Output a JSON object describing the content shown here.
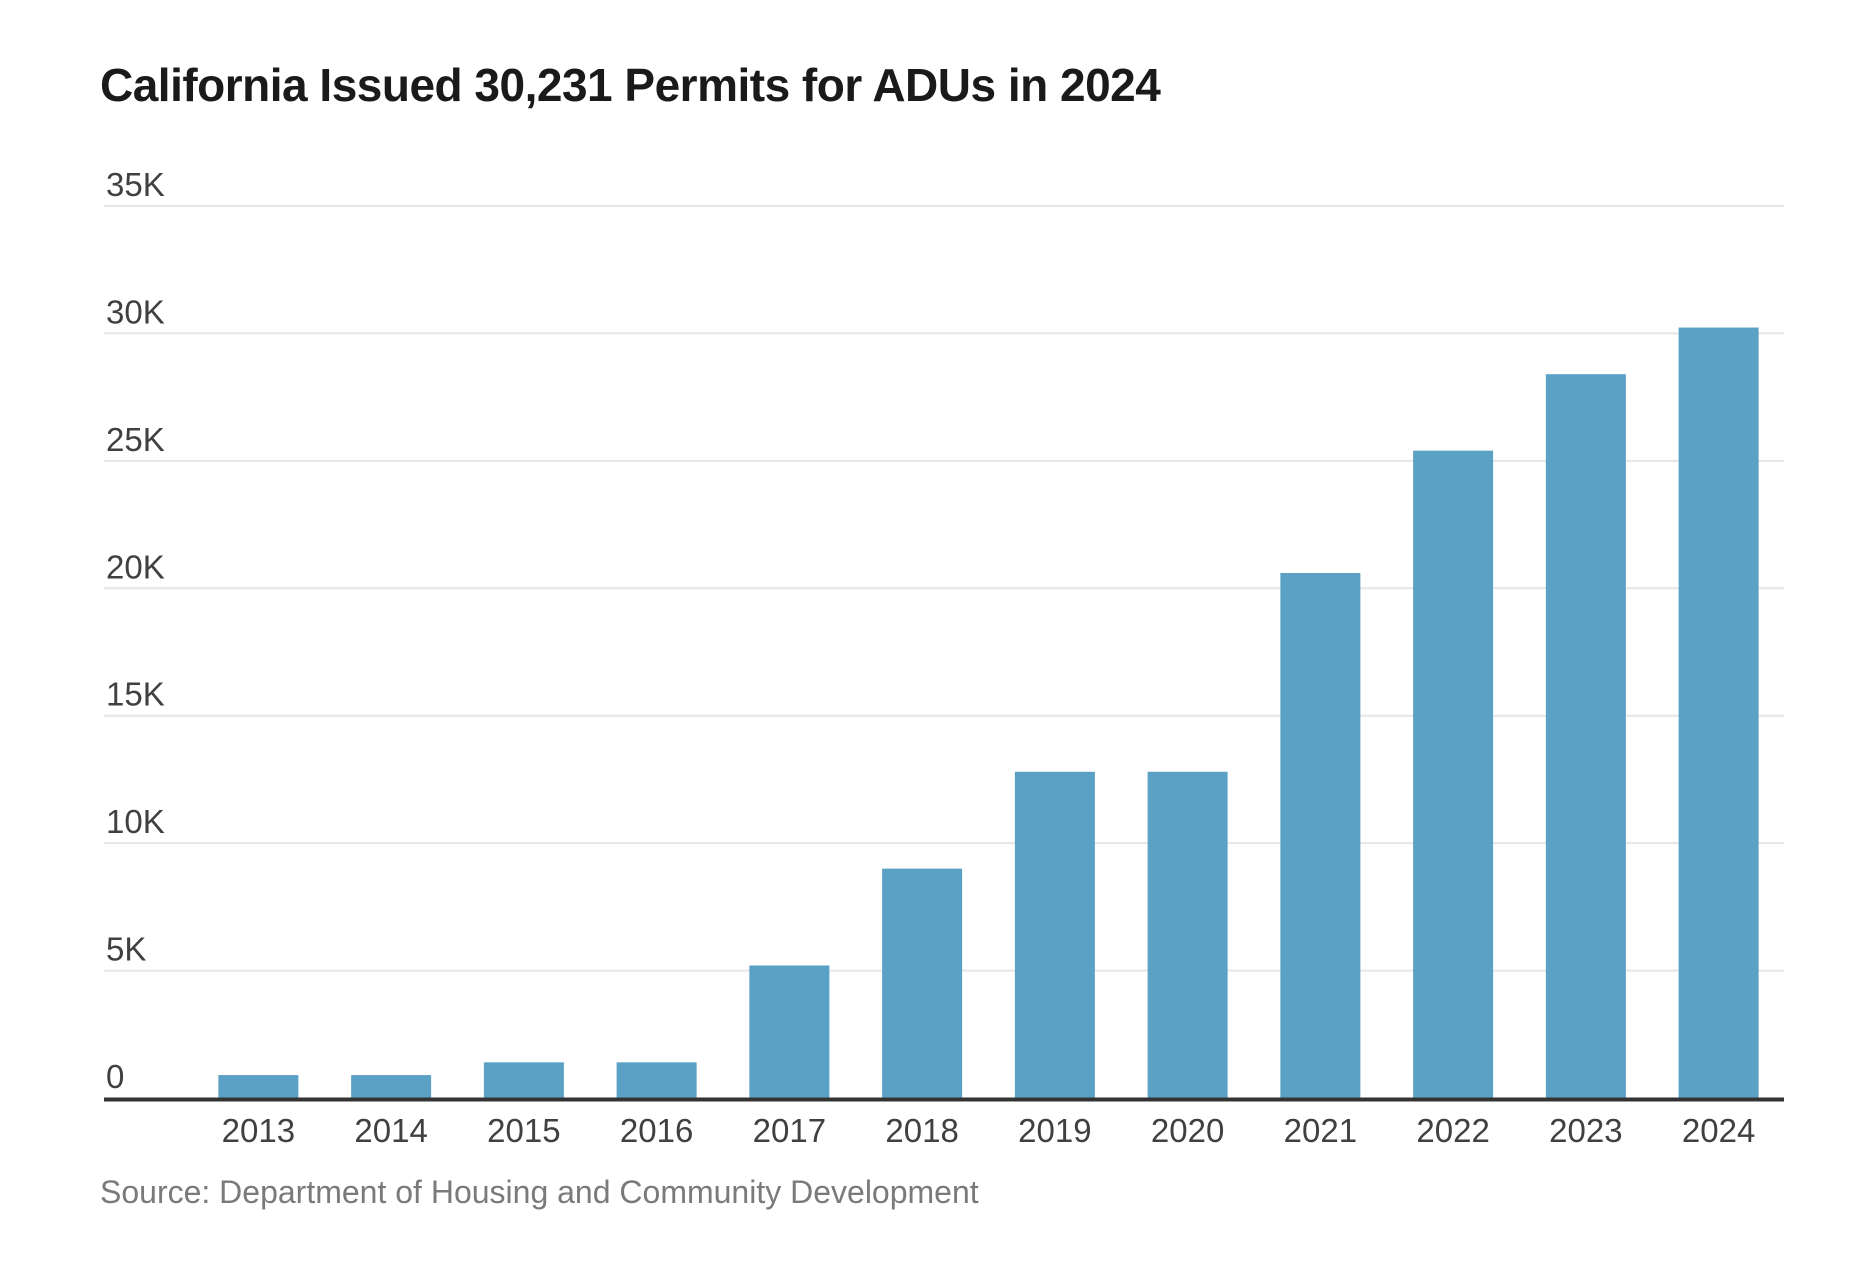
{
  "chart_data": {
    "type": "bar",
    "title": "California Issued 30,231 Permits for ADUs in 2024",
    "categories": [
      "2013",
      "2014",
      "2015",
      "2016",
      "2017",
      "2018",
      "2019",
      "2020",
      "2021",
      "2022",
      "2023",
      "2024"
    ],
    "values": [
      900,
      900,
      1400,
      1400,
      5200,
      9000,
      12800,
      12800,
      20600,
      25400,
      28400,
      30231
    ],
    "xlabel": "",
    "ylabel": "",
    "ylim": [
      0,
      35000
    ],
    "yticks": [
      0,
      5000,
      10000,
      15000,
      20000,
      25000,
      30000,
      35000
    ],
    "ytick_labels": [
      "0",
      "5K",
      "10K",
      "15K",
      "20K",
      "25K",
      "30K",
      "35K"
    ],
    "grid": true,
    "bar_color": "#5ba1c5",
    "gridline_color": "#e6e6e6",
    "baseline_color": "#333333",
    "source": "Source: Department of Housing and Community Development"
  }
}
